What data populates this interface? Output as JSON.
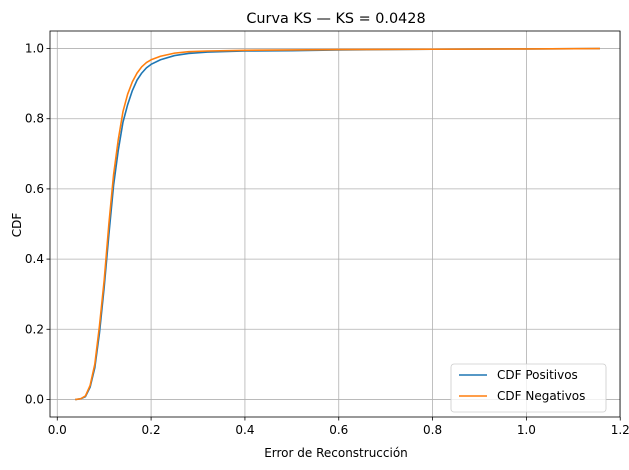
{
  "chart_data": {
    "type": "line",
    "title": "Curva KS — KS = 0.0428",
    "xlabel": "Error de Reconstrucción",
    "ylabel": "CDF",
    "xlim": [
      -0.0155,
      1.1995
    ],
    "ylim": [
      -0.05,
      1.05
    ],
    "xticks": [
      0.0,
      0.2,
      0.4,
      0.6,
      0.8,
      1.0,
      1.2
    ],
    "xtick_labels": [
      "0.0",
      "0.2",
      "0.4",
      "0.6",
      "0.8",
      "1.0",
      "1.2"
    ],
    "yticks": [
      0.0,
      0.2,
      0.4,
      0.6,
      0.8,
      1.0
    ],
    "ytick_labels": [
      "0.0",
      "0.2",
      "0.4",
      "0.6",
      "0.8",
      "1.0"
    ],
    "grid": true,
    "legend_position": "lower right",
    "series": [
      {
        "name": "CDF Positivos",
        "color": "#1f77b4",
        "points": [
          [
            0.04,
            0.0
          ],
          [
            0.05,
            0.002
          ],
          [
            0.06,
            0.008
          ],
          [
            0.07,
            0.035
          ],
          [
            0.08,
            0.09
          ],
          [
            0.09,
            0.19
          ],
          [
            0.1,
            0.32
          ],
          [
            0.11,
            0.47
          ],
          [
            0.12,
            0.61
          ],
          [
            0.13,
            0.71
          ],
          [
            0.14,
            0.79
          ],
          [
            0.15,
            0.84
          ],
          [
            0.16,
            0.88
          ],
          [
            0.17,
            0.91
          ],
          [
            0.18,
            0.93
          ],
          [
            0.19,
            0.945
          ],
          [
            0.2,
            0.955
          ],
          [
            0.22,
            0.968
          ],
          [
            0.25,
            0.98
          ],
          [
            0.28,
            0.986
          ],
          [
            0.32,
            0.99
          ],
          [
            0.4,
            0.993
          ],
          [
            0.5,
            0.994
          ],
          [
            0.6,
            0.996
          ],
          [
            0.8,
            0.998
          ],
          [
            1.0,
            0.999
          ],
          [
            1.155,
            1.0
          ]
        ]
      },
      {
        "name": "CDF Negativos",
        "color": "#ff7f0e",
        "points": [
          [
            0.04,
            0.0
          ],
          [
            0.05,
            0.002
          ],
          [
            0.06,
            0.01
          ],
          [
            0.07,
            0.04
          ],
          [
            0.08,
            0.1
          ],
          [
            0.09,
            0.21
          ],
          [
            0.1,
            0.34
          ],
          [
            0.11,
            0.5
          ],
          [
            0.12,
            0.64
          ],
          [
            0.13,
            0.74
          ],
          [
            0.14,
            0.82
          ],
          [
            0.15,
            0.87
          ],
          [
            0.16,
            0.905
          ],
          [
            0.17,
            0.93
          ],
          [
            0.18,
            0.948
          ],
          [
            0.19,
            0.96
          ],
          [
            0.2,
            0.968
          ],
          [
            0.22,
            0.978
          ],
          [
            0.25,
            0.987
          ],
          [
            0.28,
            0.991
          ],
          [
            0.32,
            0.993
          ],
          [
            0.4,
            0.995
          ],
          [
            0.5,
            0.996
          ],
          [
            0.6,
            0.997
          ],
          [
            0.8,
            0.998
          ],
          [
            1.0,
            0.999
          ],
          [
            1.155,
            1.0
          ]
        ]
      }
    ]
  }
}
